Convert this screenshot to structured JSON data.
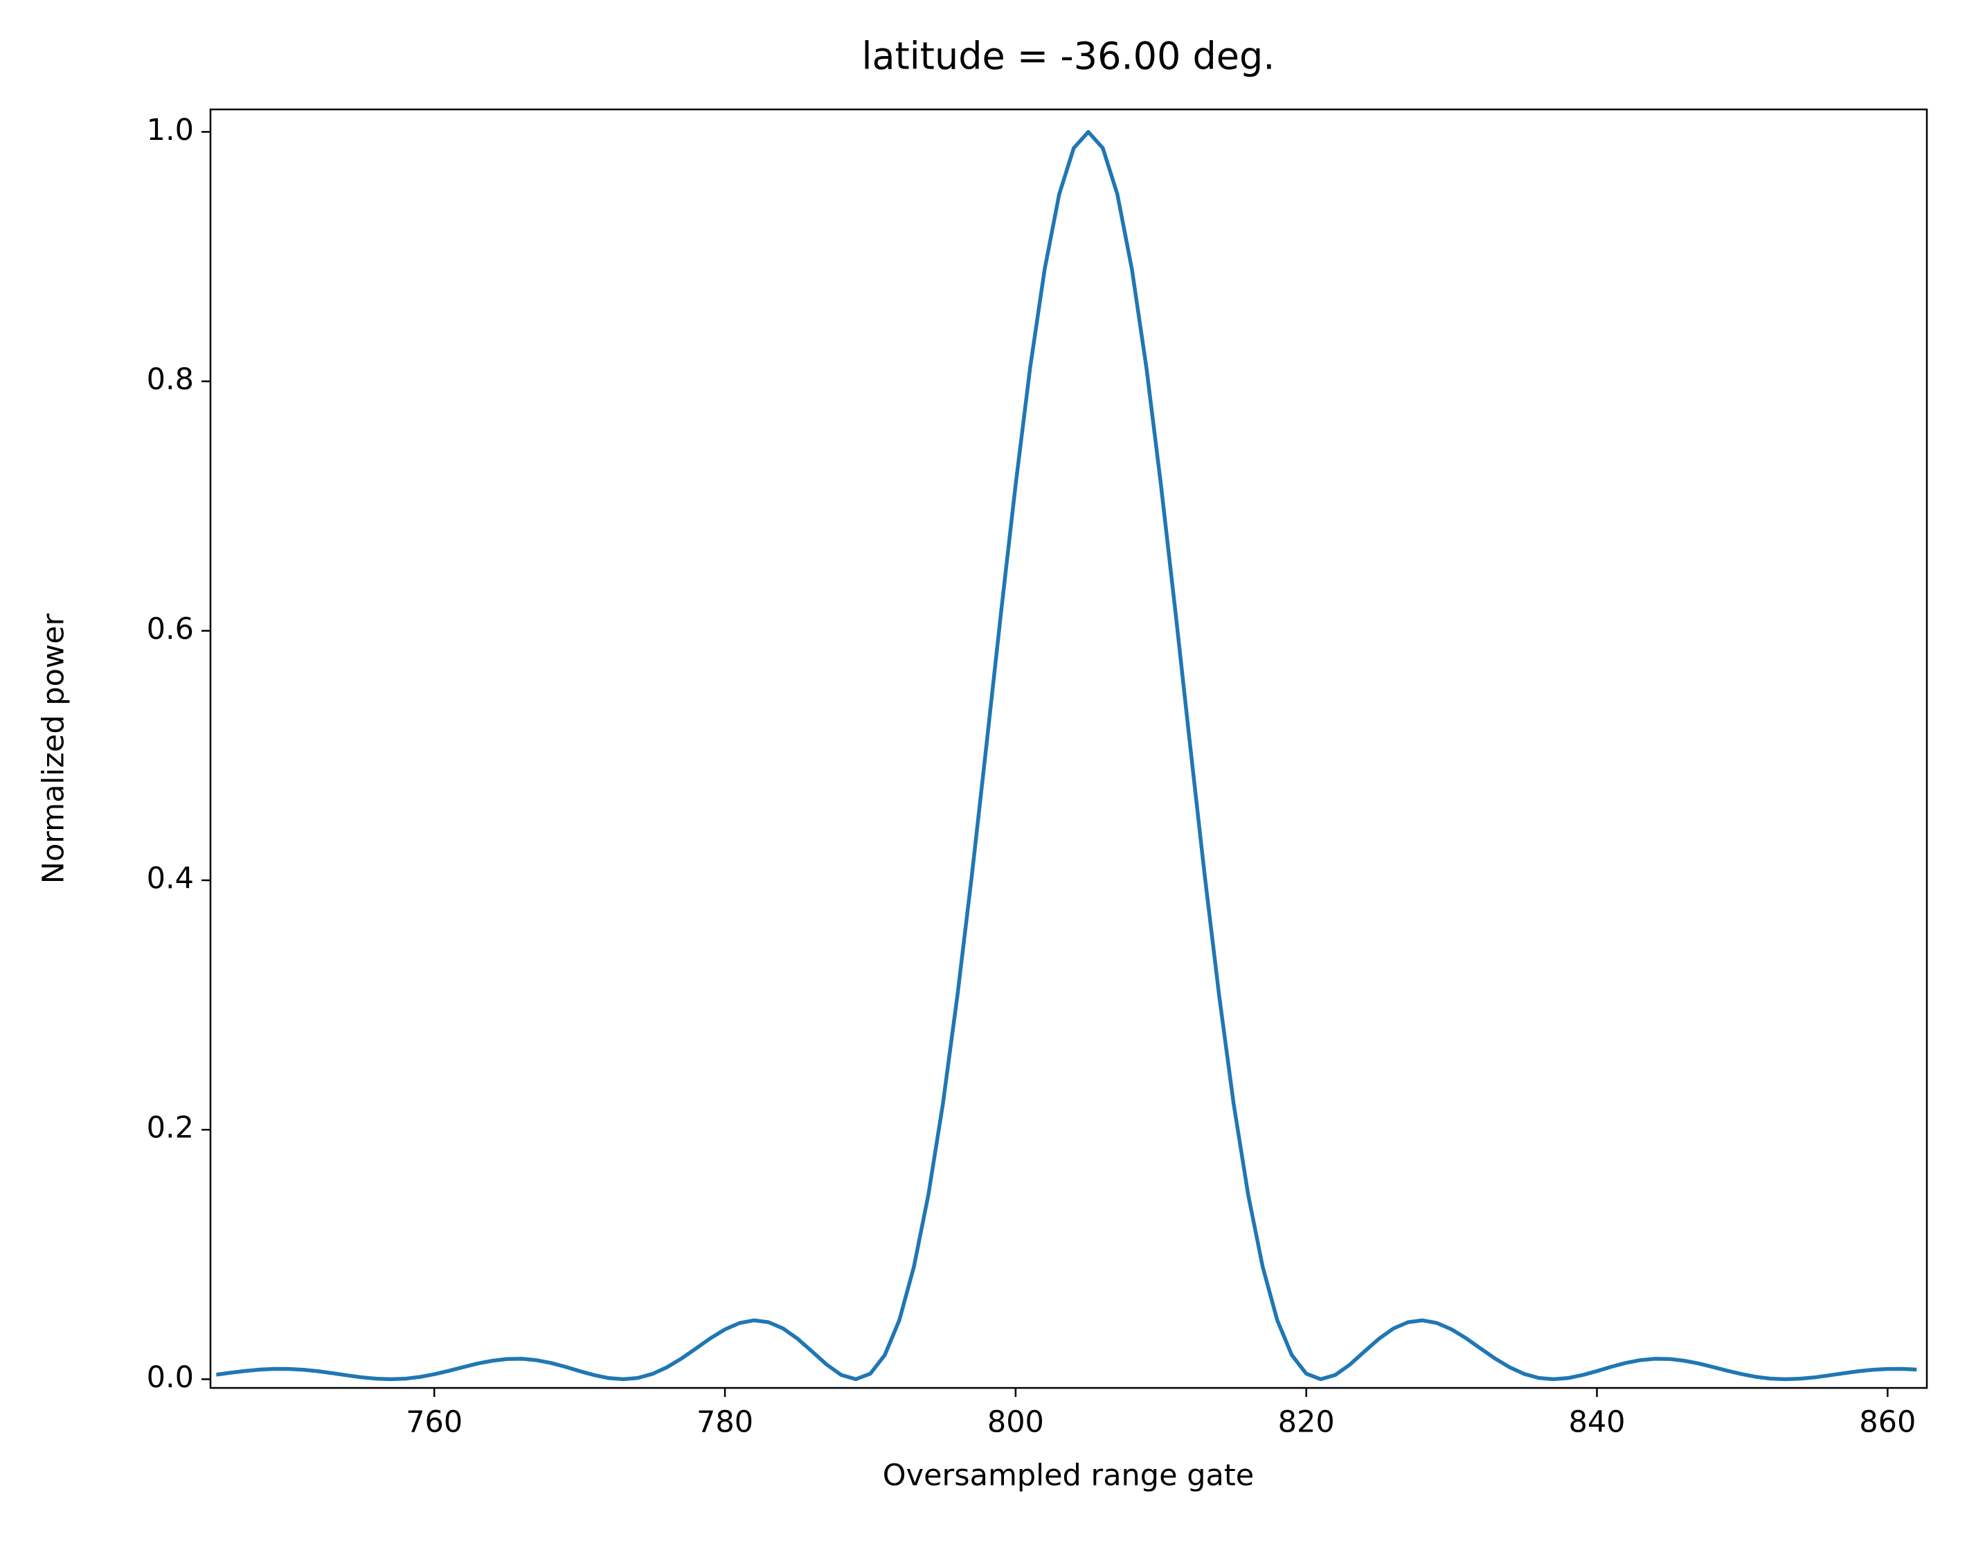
{
  "chart_data": {
    "type": "line",
    "title": "latitude = -36.00 deg.",
    "x_label": "Oversampled range gate",
    "y_label": "Normalized power",
    "x": [
      745,
      746,
      747,
      748,
      749,
      750,
      751,
      752,
      753,
      754,
      755,
      756,
      757,
      758,
      759,
      760,
      761,
      762,
      763,
      764,
      765,
      766,
      767,
      768,
      769,
      770,
      771,
      772,
      773,
      774,
      775,
      776,
      777,
      778,
      779,
      780,
      781,
      782,
      783,
      784,
      785,
      786,
      787,
      788,
      789,
      790,
      791,
      792,
      793,
      794,
      795,
      796,
      797,
      798,
      799,
      800,
      801,
      802,
      803,
      804,
      805,
      806,
      807,
      808,
      809,
      810,
      811,
      812,
      813,
      814,
      815,
      816,
      817,
      818,
      819,
      820,
      821,
      822,
      823,
      824,
      825,
      826,
      827,
      828,
      829,
      830,
      831,
      832,
      833,
      834,
      835,
      836,
      837,
      838,
      839,
      840,
      841,
      842,
      843,
      844,
      845,
      846,
      847,
      848,
      849,
      850,
      851,
      852,
      853,
      854,
      855,
      856,
      857,
      858,
      859,
      860,
      861,
      862
    ],
    "series": [
      {
        "color": "#1f77b4",
        "values": [
          0.0036,
          0.0052,
          0.0066,
          0.0077,
          0.0083,
          0.0082,
          0.0076,
          0.0064,
          0.0048,
          0.0031,
          0.0015,
          0.0004,
          0,
          0.0004,
          0.0018,
          0.004,
          0.0067,
          0.0097,
          0.0126,
          0.0148,
          0.0162,
          0.0164,
          0.0153,
          0.0131,
          0.01,
          0.0065,
          0.0033,
          0.0009,
          0,
          0.001,
          0.0042,
          0.0095,
          0.0165,
          0.0246,
          0.0328,
          0.0399,
          0.045,
          0.0472,
          0.0457,
          0.0407,
          0.0324,
          0.0222,
          0.0117,
          0.0034,
          0,
          0.0044,
          0.0194,
          0.0474,
          0.0901,
          0.148,
          0.221,
          0.308,
          0.405,
          0.509,
          0.615,
          0.717,
          0.811,
          0.89,
          0.95,
          0.987,
          1,
          0.987,
          0.95,
          0.89,
          0.811,
          0.717,
          0.615,
          0.509,
          0.405,
          0.308,
          0.221,
          0.148,
          0.0901,
          0.0474,
          0.0194,
          0.0044,
          0,
          0.0034,
          0.0117,
          0.0222,
          0.0324,
          0.0407,
          0.0457,
          0.0472,
          0.045,
          0.0399,
          0.0328,
          0.0246,
          0.0165,
          0.0095,
          0.0042,
          0.001,
          0,
          0.0009,
          0.0033,
          0.0065,
          0.01,
          0.0131,
          0.0153,
          0.0164,
          0.0162,
          0.0148,
          0.0126,
          0.0097,
          0.0067,
          0.004,
          0.0018,
          0.0004,
          0,
          0.0004,
          0.0015,
          0.0031,
          0.0048,
          0.0064,
          0.0076,
          0.0082,
          0.0083,
          0.0077
        ]
      }
    ],
    "xlim": [
      744.6,
      862.7
    ],
    "xticks": [
      760,
      780,
      800,
      820,
      840,
      860
    ],
    "ylim": [
      -0.007,
      1.018
    ],
    "yticks": [
      {
        "value": 0,
        "label": "0.0"
      },
      0.2,
      0.4,
      0.6,
      0.8,
      {
        "value": 1,
        "label": "1.0"
      }
    ]
  }
}
